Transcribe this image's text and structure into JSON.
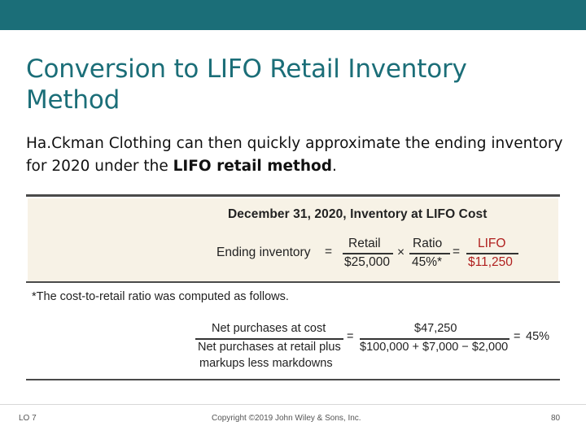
{
  "slide": {
    "title_line1": "Conversion to LIFO Retail Inventory",
    "title_line2": "Method",
    "intro_plain": "Ha.Ckman Clothing can then quickly approximate the ending inventory for 2020 under the ",
    "intro_bold": "LIFO retail method",
    "intro_end": "."
  },
  "figure": {
    "heading": "December 31, 2020, Inventory at LIFO Cost",
    "formula": {
      "label": "Ending inventory",
      "eq": "=",
      "times": "×",
      "eq2": "=",
      "term1_top": "Retail",
      "term1_bottom": "$25,000",
      "term2_top": "Ratio",
      "term2_bottom": "45%*",
      "result_top": "LIFO",
      "result_bottom": "$11,250"
    },
    "footnote": "*The cost-to-retail ratio was computed as follows.",
    "ratio": {
      "num_label": "Net purchases at cost",
      "den_label_1": "Net purchases at retail plus",
      "den_label_2": "markups less markdowns",
      "eq": "=",
      "num_value": "$47,250",
      "den_value": "$100,000 + $7,000 − $2,000",
      "eq2": "=",
      "result": "45%"
    }
  },
  "footer": {
    "lo": "LO 7",
    "copyright": "Copyright ©2019 John Wiley & Sons, Inc.",
    "page": "80"
  },
  "colors": {
    "accent": "#1b6e78",
    "panel_bg": "#f7f2e6",
    "result_red": "#b0201f"
  }
}
